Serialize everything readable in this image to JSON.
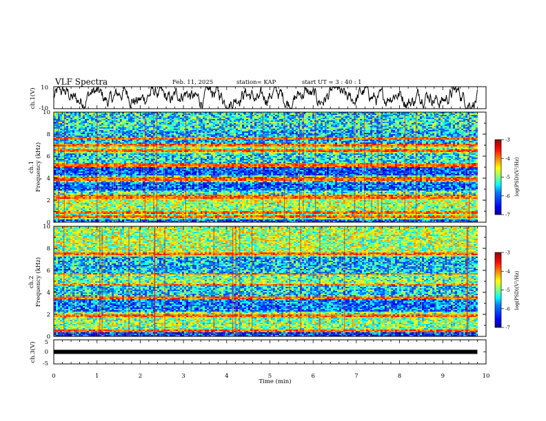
{
  "header": {
    "title": "VLF Spectra",
    "date": "Feb. 11, 2025",
    "station": "station= KAP",
    "start_ut": "start  UT =   3  : 40 : 1"
  },
  "chart_data": [
    {
      "type": "line",
      "panel": "ch.1 waveform",
      "ylabel": "ch.1(V)",
      "ylim": [
        -10,
        10
      ],
      "yticks": [
        "10",
        "-10"
      ],
      "xlim": [
        0,
        10
      ],
      "data_extent_x": [
        0,
        9.8
      ],
      "trace": "noisy amplitude trace fluctuating mostly between about -7 and +9 V"
    },
    {
      "type": "heatmap",
      "panel": "ch.1 spectrogram",
      "ylabel_line1": "ch.1",
      "ylabel_line2": "Frequency  (kHz)",
      "ylim": [
        0,
        10
      ],
      "yticks": [
        "0",
        "2",
        "4",
        "6",
        "8",
        "10"
      ],
      "xlim": [
        0,
        10
      ],
      "data_extent_x": [
        0,
        9.8
      ],
      "colorbar": {
        "label": "log(PSD)(V²/Hz)",
        "range": [
          -7,
          -3
        ],
        "ticks": [
          "-3",
          "-4",
          "-5",
          "-6",
          "-7"
        ],
        "colors": [
          "#000090",
          "#0000ff",
          "#0080ff",
          "#00ffff",
          "#80ff80",
          "#ffff00",
          "#ff8000",
          "#ff0000",
          "#900000"
        ]
      },
      "bands_khz": [
        {
          "f0": 0.0,
          "f1": 0.3,
          "level": -6.0
        },
        {
          "f0": 0.3,
          "f1": 1.7,
          "level": -4.9
        },
        {
          "f0": 1.7,
          "f1": 2.3,
          "level": -4.7
        },
        {
          "f0": 2.3,
          "f1": 2.9,
          "level": -5.2
        },
        {
          "f0": 2.9,
          "f1": 3.6,
          "level": -6.0
        },
        {
          "f0": 3.6,
          "f1": 4.3,
          "level": -5.3
        },
        {
          "f0": 4.3,
          "f1": 5.0,
          "level": -6.1
        },
        {
          "f0": 5.0,
          "f1": 6.3,
          "level": -5.4
        },
        {
          "f0": 6.3,
          "f1": 7.0,
          "level": -4.9
        },
        {
          "f0": 7.0,
          "f1": 8.4,
          "level": -5.6
        },
        {
          "f0": 8.4,
          "f1": 10.0,
          "level": -5.4
        }
      ],
      "lines_khz": [
        0.5,
        0.9,
        2.2,
        2.4,
        3.8,
        4.0,
        5.1,
        5.3,
        6.5,
        7.0,
        7.6
      ]
    },
    {
      "type": "heatmap",
      "panel": "ch.2 spectrogram",
      "ylabel_line1": "ch.2",
      "ylabel_line2": "Frequency  (kHz)",
      "ylim": [
        0,
        10
      ],
      "yticks": [
        "0",
        "2",
        "4",
        "6",
        "8",
        "10"
      ],
      "xlim": [
        0,
        10
      ],
      "data_extent_x": [
        0,
        9.8
      ],
      "colorbar": {
        "label": "log(PSD)(V²/Hz)",
        "range": [
          -7,
          -3
        ],
        "ticks": [
          "-3",
          "-4",
          "-5",
          "-6",
          "-7"
        ]
      },
      "bands_khz": [
        {
          "f0": 0.0,
          "f1": 0.4,
          "level": -6.2
        },
        {
          "f0": 0.4,
          "f1": 1.6,
          "level": -4.9
        },
        {
          "f0": 1.6,
          "f1": 2.2,
          "level": -5.0
        },
        {
          "f0": 2.2,
          "f1": 3.4,
          "level": -5.9
        },
        {
          "f0": 3.4,
          "f1": 4.7,
          "level": -5.5
        },
        {
          "f0": 4.7,
          "f1": 5.7,
          "level": -5.0
        },
        {
          "f0": 5.7,
          "f1": 7.3,
          "level": -5.6
        },
        {
          "f0": 7.3,
          "f1": 10.0,
          "level": -4.8
        }
      ],
      "lines_khz": [
        0.5,
        1.9,
        3.5,
        4.7,
        5.7,
        7.5
      ]
    },
    {
      "type": "line",
      "panel": "ch.3 waveform",
      "ylabel": "ch.3(V)",
      "ylim": [
        -5,
        5
      ],
      "yticks": [
        "5",
        "0",
        "-5"
      ],
      "xlim": [
        0,
        10
      ],
      "xlabel": "Time  (min)",
      "xticks": [
        "0",
        "1",
        "2",
        "3",
        "4",
        "5",
        "6",
        "7",
        "8",
        "9",
        "10"
      ],
      "trace_level": 0,
      "trace": "flat line near 0 V with small noise, drawn thick",
      "data_extent_x": [
        0,
        9.8
      ]
    }
  ]
}
